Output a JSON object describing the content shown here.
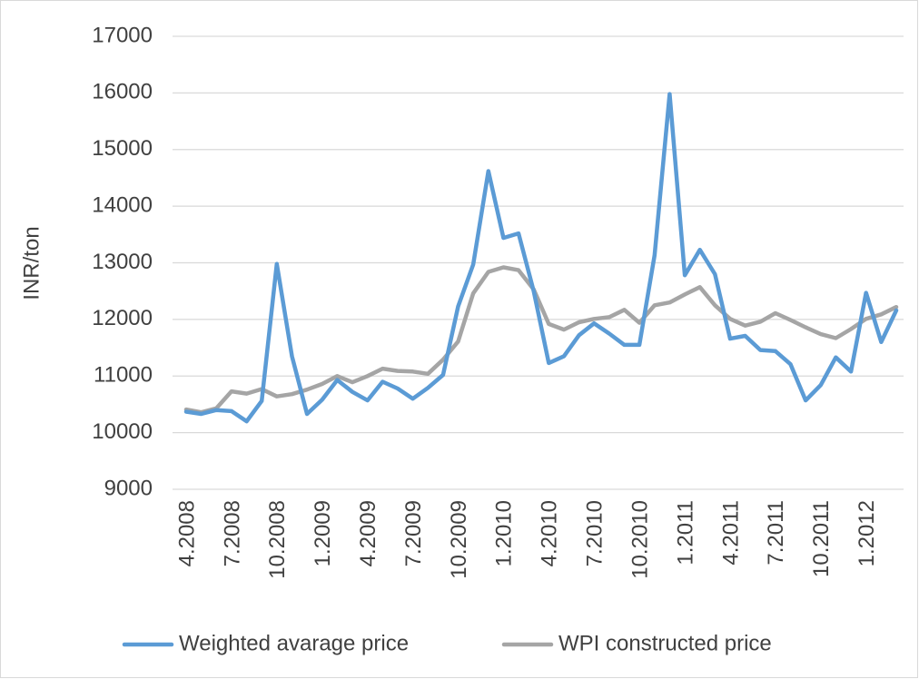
{
  "chart_data": {
    "type": "line",
    "ylabel": "INR/ton",
    "categories": [
      "4.2008",
      null,
      null,
      "7.2008",
      null,
      null,
      "10.2008",
      null,
      null,
      "1.2009",
      null,
      null,
      "4.2009",
      null,
      null,
      "7.2009",
      null,
      null,
      "10.2009",
      null,
      null,
      "1.2010",
      null,
      null,
      "4.2010",
      null,
      null,
      "7.2010",
      null,
      null,
      "10.2010",
      null,
      null,
      "1.2011",
      null,
      null,
      "4.2011",
      null,
      null,
      "7.2011",
      null,
      null,
      "10.2011",
      null,
      null,
      "1.2012",
      null,
      null
    ],
    "series": [
      {
        "name": "Weighted avarage price",
        "color": "#5b9bd5",
        "values": [
          10370,
          10330,
          10400,
          10380,
          10200,
          10560,
          12980,
          11350,
          10330,
          10580,
          10930,
          10720,
          10570,
          10900,
          10780,
          10600,
          10790,
          11020,
          12230,
          12970,
          14620,
          13440,
          13520,
          12500,
          11230,
          11350,
          11720,
          11930,
          11750,
          11550,
          11550,
          13130,
          15980,
          12780,
          13230,
          12800,
          11660,
          11710,
          11460,
          11440,
          11210,
          10570,
          10840,
          11330,
          11080,
          12470,
          11600,
          12160
        ]
      },
      {
        "name": "WPI constructed price",
        "color": "#a5a5a5",
        "values": [
          10410,
          10360,
          10430,
          10730,
          10690,
          10770,
          10640,
          10680,
          10760,
          10860,
          11000,
          10890,
          11000,
          11130,
          11090,
          11080,
          11040,
          11290,
          11610,
          12460,
          12840,
          12920,
          12870,
          12530,
          11920,
          11820,
          11950,
          12010,
          12040,
          12170,
          11940,
          12250,
          12300,
          12440,
          12570,
          12250,
          12010,
          11890,
          11960,
          12110,
          11990,
          11860,
          11740,
          11670,
          11830,
          12010,
          12090,
          12220
        ]
      }
    ],
    "ylim": [
      9000,
      17000
    ],
    "yticks": [
      9000,
      10000,
      11000,
      12000,
      13000,
      14000,
      15000,
      16000,
      17000
    ],
    "grid": true,
    "legend": "bottom"
  }
}
